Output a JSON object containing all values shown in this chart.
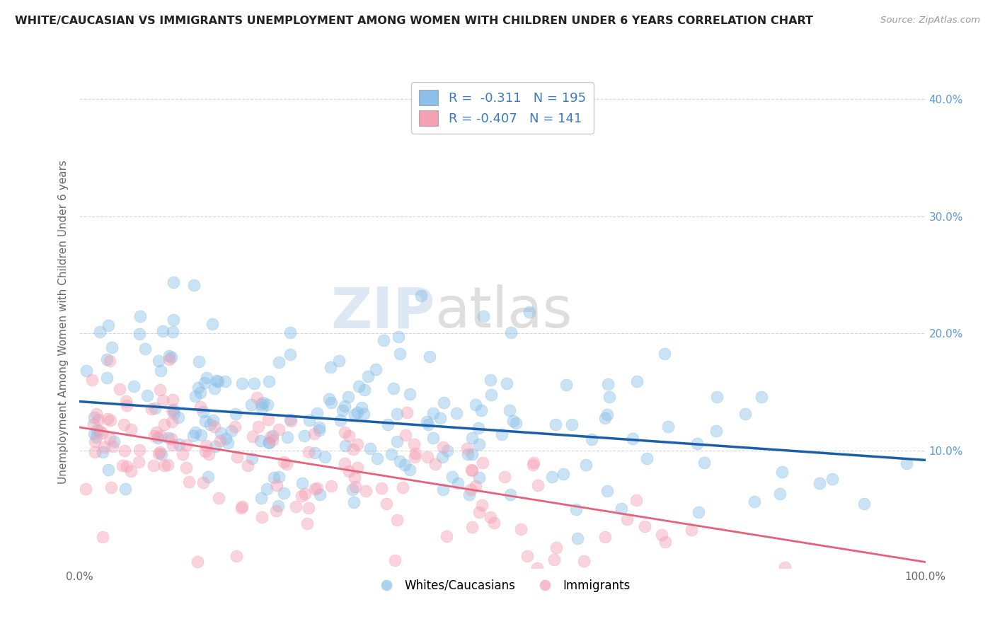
{
  "title": "WHITE/CAUCASIAN VS IMMIGRANTS UNEMPLOYMENT AMONG WOMEN WITH CHILDREN UNDER 6 YEARS CORRELATION CHART",
  "source": "Source: ZipAtlas.com",
  "ylabel": "Unemployment Among Women with Children Under 6 years",
  "watermark_zip": "ZIP",
  "watermark_atlas": "atlas",
  "legend": {
    "blue_r": -0.311,
    "blue_n": 195,
    "pink_r": -0.407,
    "pink_n": 141
  },
  "blue_color": "#89bfe8",
  "pink_color": "#f5a0b5",
  "blue_line_color": "#1a5fa8",
  "pink_line_color": "#e8607a",
  "xlim": [
    0,
    100
  ],
  "ylim": [
    0,
    42
  ],
  "ytick_vals": [
    0,
    10,
    20,
    30,
    40
  ],
  "ytick_labels_right": [
    "",
    "10.0%",
    "20.0%",
    "30.0%",
    "40.0%"
  ],
  "grid_color": "#cccccc",
  "background_color": "#ffffff",
  "blue_seed": 42,
  "pink_seed": 7,
  "blue_n": 195,
  "pink_n": 141,
  "blue_intercept": 14.2,
  "blue_slope": -0.05,
  "pink_intercept": 12.0,
  "pink_slope": -0.115
}
